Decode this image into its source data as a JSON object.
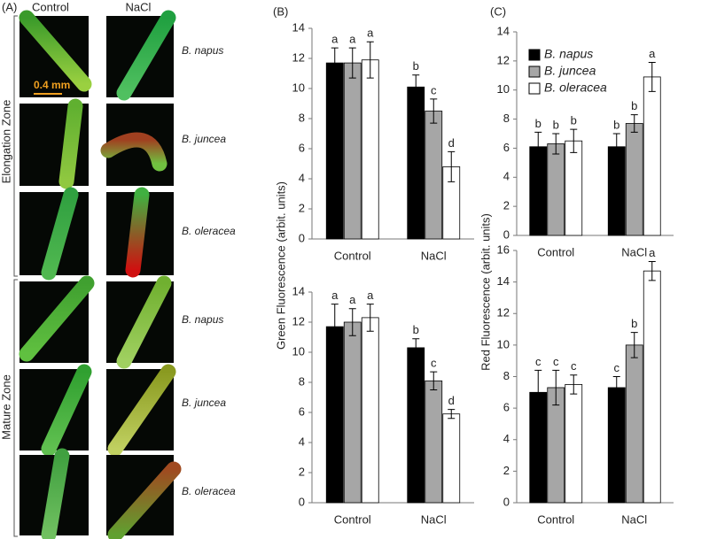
{
  "panel_a": {
    "label": "(A)",
    "columns": [
      "Control",
      "NaCl"
    ],
    "zones": [
      "Elongation Zone",
      "Mature Zone"
    ],
    "species": [
      "B. napus",
      "B. juncea",
      "B. oleracea",
      "B. napus",
      "B. juncea",
      "B. oleracea"
    ],
    "scale_bar": "0.4 mm"
  },
  "chart_data": [
    {
      "type": "bar",
      "panel": "(B)",
      "ylabel": "Green Fluorescence (arbit. units)",
      "categories": [
        "Control",
        "NaCl"
      ],
      "ylim": [
        0,
        14
      ],
      "yticks": [
        0,
        2,
        4,
        6,
        8,
        10,
        12,
        14
      ],
      "series": [
        {
          "color": "#000000",
          "values": [
            11.7,
            10.1
          ],
          "errors": [
            1.0,
            0.8
          ],
          "letters": [
            "a",
            "b"
          ]
        },
        {
          "color": "#a6a6a6",
          "values": [
            11.7,
            8.5
          ],
          "errors": [
            1.0,
            0.8
          ],
          "letters": [
            "a",
            "c"
          ]
        },
        {
          "color": "#ffffff",
          "values": [
            11.9,
            4.8
          ],
          "errors": [
            1.2,
            1.0
          ],
          "letters": [
            "a",
            "d"
          ]
        }
      ]
    },
    {
      "type": "bar",
      "categories": [
        "Control",
        "NaCl"
      ],
      "ylim": [
        0,
        14
      ],
      "yticks": [
        0,
        2,
        4,
        6,
        8,
        10,
        12,
        14
      ],
      "series": [
        {
          "color": "#000000",
          "values": [
            11.7,
            10.3
          ],
          "errors": [
            1.5,
            0.6
          ],
          "letters": [
            "a",
            "b"
          ]
        },
        {
          "color": "#a6a6a6",
          "values": [
            12.0,
            8.1
          ],
          "errors": [
            0.9,
            0.6
          ],
          "letters": [
            "a",
            "c"
          ]
        },
        {
          "color": "#ffffff",
          "values": [
            12.3,
            5.9
          ],
          "errors": [
            0.9,
            0.3
          ],
          "letters": [
            "a",
            "d"
          ]
        }
      ]
    },
    {
      "type": "bar",
      "panel": "(C)",
      "ylabel": "Red Fluorescence (arbit. units)",
      "categories": [
        "Control",
        "NaCl"
      ],
      "ylim": [
        0,
        14
      ],
      "yticks": [
        0,
        2,
        4,
        6,
        8,
        10,
        12,
        14
      ],
      "legend": true,
      "series": [
        {
          "name": "B. napus",
          "color": "#000000",
          "values": [
            6.1,
            6.1
          ],
          "errors": [
            1.0,
            0.9
          ],
          "letters": [
            "b",
            "b"
          ]
        },
        {
          "name": "B. juncea",
          "color": "#a6a6a6",
          "values": [
            6.3,
            7.7
          ],
          "errors": [
            0.7,
            0.6
          ],
          "letters": [
            "b",
            "b"
          ]
        },
        {
          "name": "B. oleracea",
          "color": "#ffffff",
          "values": [
            6.5,
            10.9
          ],
          "errors": [
            0.8,
            1.0
          ],
          "letters": [
            "b",
            "a"
          ]
        }
      ]
    },
    {
      "type": "bar",
      "categories": [
        "Control",
        "NaCl"
      ],
      "ylim": [
        0,
        16
      ],
      "yticks": [
        0,
        2,
        4,
        6,
        8,
        10,
        12,
        14,
        16
      ],
      "series": [
        {
          "color": "#000000",
          "values": [
            7.0,
            7.3
          ],
          "errors": [
            1.4,
            0.7
          ],
          "letters": [
            "c",
            "c"
          ]
        },
        {
          "color": "#a6a6a6",
          "values": [
            7.3,
            10.0
          ],
          "errors": [
            1.1,
            0.8
          ],
          "letters": [
            "c",
            "b"
          ]
        },
        {
          "color": "#ffffff",
          "values": [
            7.5,
            14.7
          ],
          "errors": [
            0.6,
            0.6
          ],
          "letters": [
            "c",
            "a"
          ]
        }
      ]
    }
  ]
}
